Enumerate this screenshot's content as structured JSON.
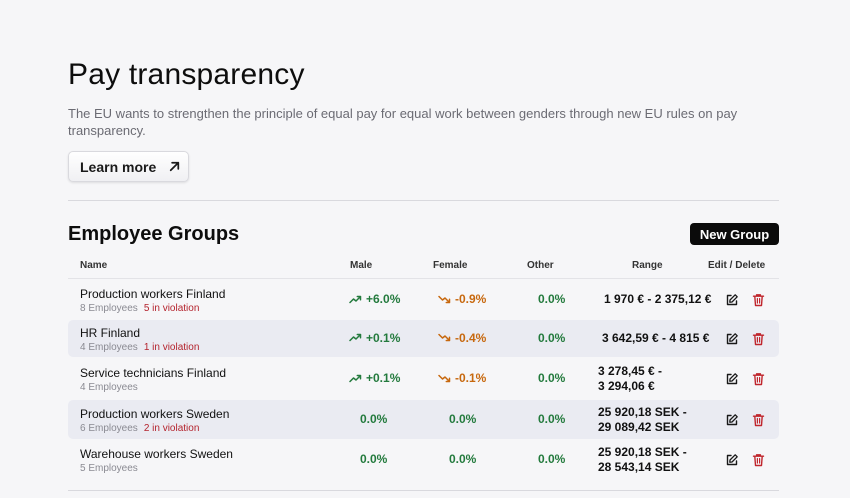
{
  "header": {
    "title": "Pay transparency",
    "description": "The EU wants to strengthen the principle of equal pay for equal work between genders through new EU rules on pay transparency.",
    "learn_more": "Learn more"
  },
  "groups": {
    "title": "Employee Groups",
    "new_group": "New Group",
    "columns": {
      "name": "Name",
      "male": "Male",
      "female": "Female",
      "other": "Other",
      "range": "Range",
      "actions": "Edit / Delete"
    },
    "rows": [
      {
        "name": "Production workers Finland",
        "employees": "8 Employees",
        "violation": "5 in violation",
        "male": "+6.0%",
        "male_trend": "up",
        "female": "-0.9%",
        "female_trend": "down",
        "other": "0.0%",
        "range_line1": "1 970 € - 2 375,12 €",
        "range_line2": ""
      },
      {
        "name": "HR Finland",
        "employees": "4 Employees",
        "violation": "1 in violation",
        "male": "+0.1%",
        "male_trend": "up",
        "female": "-0.4%",
        "female_trend": "down",
        "other": "0.0%",
        "range_line1": "3 642,59 € - 4 815 €",
        "range_line2": ""
      },
      {
        "name": "Service technicians Finland",
        "employees": "4 Employees",
        "violation": "",
        "male": "+0.1%",
        "male_trend": "up",
        "female": "-0.1%",
        "female_trend": "down",
        "other": "0.0%",
        "range_line1": "3 278,45 € -",
        "range_line2": "3 294,06 €"
      },
      {
        "name": "Production workers Sweden",
        "employees": "6 Employees",
        "violation": "2 in violation",
        "male": "0.0%",
        "male_trend": "flat",
        "female": "0.0%",
        "female_trend": "flat",
        "other": "0.0%",
        "range_line1": "25 920,18 SEK -",
        "range_line2": "29 089,42 SEK"
      },
      {
        "name": "Warehouse workers Sweden",
        "employees": "5 Employees",
        "violation": "",
        "male": "0.0%",
        "male_trend": "flat",
        "female": "0.0%",
        "female_trend": "flat",
        "other": "0.0%",
        "range_line1": "25 920,18 SEK -",
        "range_line2": "28 543,14 SEK"
      }
    ]
  },
  "icons": {
    "learn_more": "arrow-up-right-icon",
    "trend_up": "trend-up-icon",
    "trend_down": "trend-down-icon",
    "edit": "edit-icon",
    "delete": "trash-icon"
  },
  "colors": {
    "positive": "#237a3d",
    "negative": "#c7680e",
    "violation": "#b4232d",
    "delete": "#c0262d"
  }
}
